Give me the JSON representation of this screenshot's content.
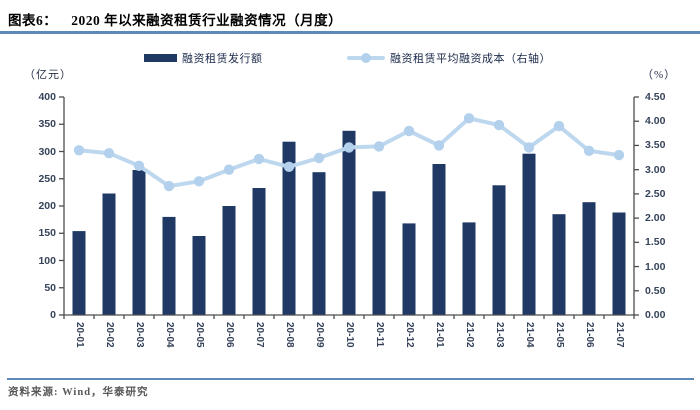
{
  "header": {
    "label": "图表6：",
    "title": "2020 年以来融资租赁行业融资情况（月度）"
  },
  "legend": [
    {
      "label": "融资租赁发行额",
      "swatch": "bar-swatch"
    },
    {
      "label": "融资租赁平均融资成本（右轴）",
      "swatch": "line-swatch"
    }
  ],
  "footer": {
    "source": "资料来源: Wind，华泰研究"
  },
  "colors": {
    "bar": "#1f3864",
    "line": "#bdd7ee",
    "marker": "#b3d1ec",
    "axis": "#4d4d4d",
    "tick_text": "#36435a",
    "rule_blue": "#5e88b5",
    "footer_text": "#595959"
  },
  "chart_data": {
    "type": "bar+line combo",
    "title": "2020 年以来融资租赁行业融资情况（月度）",
    "categories": [
      "20-01",
      "20-02",
      "20-03",
      "20-04",
      "20-05",
      "20-06",
      "20-07",
      "20-08",
      "20-09",
      "20-10",
      "20-11",
      "20-12",
      "21-01",
      "21-02",
      "21-03",
      "21-04",
      "21-05",
      "21-06",
      "21-07"
    ],
    "series": [
      {
        "name": "融资租赁发行额",
        "type": "bar",
        "axis": "left",
        "color": "#1f3864",
        "values": [
          154,
          223,
          266,
          180,
          145,
          200,
          233,
          318,
          262,
          338,
          227,
          168,
          277,
          170,
          238,
          296,
          185,
          207,
          188
        ]
      },
      {
        "name": "融资租赁平均融资成本（右轴）",
        "type": "line",
        "axis": "right",
        "color": "#bdd7ee",
        "values": [
          3.4,
          3.34,
          3.08,
          2.66,
          2.76,
          3.0,
          3.22,
          3.06,
          3.24,
          3.46,
          3.48,
          3.8,
          3.5,
          4.06,
          3.92,
          3.46,
          3.9,
          3.39,
          3.3
        ]
      }
    ],
    "left_axis": {
      "unit": "（亿元）",
      "min": 0,
      "max": 400,
      "step": 50,
      "decimals": 0
    },
    "right_axis": {
      "unit": "（%）",
      "min": 0,
      "max": 4.5,
      "step": 0.5,
      "decimals": 2
    },
    "grid": false,
    "legend_position": "top"
  }
}
